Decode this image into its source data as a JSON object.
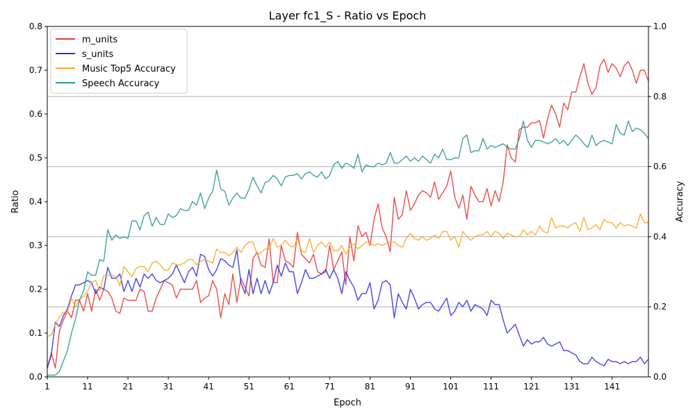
{
  "chart_data": {
    "type": "line",
    "title": "Layer fc1_S - Ratio vs Epoch",
    "xlabel": "Epoch",
    "ylabel": "Ratio",
    "y2label": "Accuracy",
    "xlim": [
      1,
      150
    ],
    "ylim": [
      0,
      0.8
    ],
    "y2lim": [
      0,
      1.0
    ],
    "xticks": [
      1,
      11,
      21,
      31,
      41,
      51,
      61,
      71,
      81,
      91,
      101,
      111,
      121,
      131,
      141
    ],
    "yticks": [
      "0.0",
      "0.1",
      "0.2",
      "0.3",
      "0.4",
      "0.5",
      "0.6",
      "0.7",
      "0.8"
    ],
    "y2ticks": [
      "0.0",
      "0.2",
      "0.4",
      "0.6",
      "0.8",
      "1.0"
    ],
    "grid": "horizontal, right axis",
    "legend_position": "top-left",
    "colors": {
      "m_units": "#e53935",
      "s_units": "#3030e0",
      "music": "#f9a825",
      "speech": "#2a9890",
      "grid": "#b0b0b0"
    },
    "series": [
      {
        "name": "m_units",
        "axis": "left",
        "key": "m_units",
        "values": [
          0.02,
          0.055,
          0.02,
          0.105,
          0.13,
          0.15,
          0.135,
          0.175,
          0.175,
          0.15,
          0.19,
          0.15,
          0.2,
          0.175,
          0.2,
          0.195,
          0.18,
          0.15,
          0.145,
          0.18,
          0.175,
          0.175,
          0.175,
          0.2,
          0.195,
          0.15,
          0.15,
          0.18,
          0.2,
          0.22,
          0.215,
          0.21,
          0.18,
          0.2,
          0.2,
          0.2,
          0.2,
          0.22,
          0.17,
          0.18,
          0.185,
          0.22,
          0.2,
          0.135,
          0.19,
          0.165,
          0.235,
          0.17,
          0.225,
          0.205,
          0.185,
          0.27,
          0.285,
          0.255,
          0.25,
          0.315,
          0.215,
          0.215,
          0.3,
          0.265,
          0.26,
          0.25,
          0.33,
          0.28,
          0.27,
          0.26,
          0.28,
          0.24,
          0.235,
          0.24,
          0.3,
          0.245,
          0.265,
          0.285,
          0.21,
          0.32,
          0.265,
          0.345,
          0.32,
          0.33,
          0.3,
          0.36,
          0.395,
          0.34,
          0.32,
          0.285,
          0.41,
          0.36,
          0.37,
          0.425,
          0.38,
          0.395,
          0.415,
          0.425,
          0.42,
          0.41,
          0.445,
          0.405,
          0.42,
          0.435,
          0.47,
          0.41,
          0.385,
          0.415,
          0.36,
          0.435,
          0.415,
          0.4,
          0.4,
          0.43,
          0.39,
          0.425,
          0.4,
          0.445,
          0.53,
          0.5,
          0.49,
          0.565,
          0.57,
          0.57,
          0.58,
          0.58,
          0.585,
          0.545,
          0.59,
          0.62,
          0.6,
          0.57,
          0.625,
          0.61,
          0.65,
          0.65,
          0.685,
          0.715,
          0.67,
          0.645,
          0.66,
          0.71,
          0.725,
          0.695,
          0.715,
          0.705,
          0.685,
          0.71,
          0.72,
          0.7,
          0.67,
          0.7,
          0.7,
          0.675
        ]
      },
      {
        "name": "s_units",
        "axis": "left",
        "key": "s_units",
        "values": [
          0.02,
          0.05,
          0.125,
          0.115,
          0.14,
          0.155,
          0.185,
          0.21,
          0.21,
          0.215,
          0.22,
          0.215,
          0.19,
          0.205,
          0.2,
          0.25,
          0.225,
          0.225,
          0.235,
          0.195,
          0.22,
          0.195,
          0.225,
          0.205,
          0.235,
          0.225,
          0.235,
          0.22,
          0.215,
          0.22,
          0.225,
          0.235,
          0.255,
          0.235,
          0.215,
          0.24,
          0.25,
          0.23,
          0.28,
          0.275,
          0.245,
          0.23,
          0.245,
          0.27,
          0.265,
          0.255,
          0.25,
          0.29,
          0.215,
          0.19,
          0.245,
          0.19,
          0.225,
          0.19,
          0.22,
          0.19,
          0.215,
          0.255,
          0.23,
          0.26,
          0.24,
          0.24,
          0.19,
          0.215,
          0.245,
          0.225,
          0.225,
          0.23,
          0.235,
          0.245,
          0.225,
          0.245,
          0.225,
          0.19,
          0.24,
          0.22,
          0.205,
          0.175,
          0.19,
          0.19,
          0.215,
          0.155,
          0.175,
          0.215,
          0.22,
          0.21,
          0.135,
          0.19,
          0.17,
          0.155,
          0.2,
          0.18,
          0.155,
          0.165,
          0.17,
          0.17,
          0.155,
          0.15,
          0.165,
          0.18,
          0.14,
          0.15,
          0.17,
          0.16,
          0.175,
          0.15,
          0.165,
          0.16,
          0.155,
          0.14,
          0.175,
          0.165,
          0.165,
          0.13,
          0.1,
          0.11,
          0.12,
          0.095,
          0.07,
          0.085,
          0.075,
          0.08,
          0.08,
          0.09,
          0.075,
          0.07,
          0.075,
          0.08,
          0.06,
          0.06,
          0.055,
          0.05,
          0.035,
          0.03,
          0.03,
          0.045,
          0.035,
          0.03,
          0.025,
          0.04,
          0.035,
          0.035,
          0.03,
          0.035,
          0.03,
          0.035,
          0.035,
          0.045,
          0.03,
          0.04
        ]
      },
      {
        "name": "Music Top5 Accuracy",
        "axis": "right",
        "key": "music",
        "values": [
          0.115,
          0.12,
          0.15,
          0.17,
          0.185,
          0.185,
          0.225,
          0.2,
          0.22,
          0.23,
          0.245,
          0.27,
          0.275,
          0.245,
          0.29,
          0.29,
          0.29,
          0.285,
          0.26,
          0.315,
          0.3,
          0.285,
          0.31,
          0.315,
          0.315,
          0.3,
          0.325,
          0.33,
          0.32,
          0.305,
          0.305,
          0.325,
          0.32,
          0.32,
          0.325,
          0.335,
          0.335,
          0.32,
          0.33,
          0.335,
          0.33,
          0.325,
          0.365,
          0.355,
          0.355,
          0.345,
          0.355,
          0.37,
          0.355,
          0.375,
          0.385,
          0.385,
          0.35,
          0.355,
          0.365,
          0.365,
          0.395,
          0.37,
          0.375,
          0.39,
          0.375,
          0.37,
          0.395,
          0.36,
          0.355,
          0.395,
          0.355,
          0.375,
          0.385,
          0.37,
          0.385,
          0.36,
          0.36,
          0.375,
          0.35,
          0.37,
          0.38,
          0.365,
          0.375,
          0.385,
          0.38,
          0.375,
          0.38,
          0.375,
          0.38,
          0.385,
          0.385,
          0.375,
          0.37,
          0.395,
          0.41,
          0.395,
          0.39,
          0.4,
          0.39,
          0.395,
          0.405,
          0.395,
          0.415,
          0.415,
          0.39,
          0.4,
          0.37,
          0.415,
          0.4,
          0.39,
          0.4,
          0.405,
          0.405,
          0.415,
          0.4,
          0.415,
          0.41,
          0.395,
          0.41,
          0.405,
          0.4,
          0.4,
          0.42,
          0.405,
          0.415,
          0.405,
          0.43,
          0.415,
          0.41,
          0.455,
          0.425,
          0.43,
          0.43,
          0.425,
          0.435,
          0.44,
          0.415,
          0.455,
          0.42,
          0.425,
          0.435,
          0.42,
          0.45,
          0.44,
          0.44,
          0.425,
          0.44,
          0.43,
          0.435,
          0.43,
          0.425,
          0.465,
          0.44,
          0.44
        ]
      },
      {
        "name": "Speech Accuracy",
        "axis": "right",
        "key": "speech",
        "values": [
          0.005,
          0.005,
          0.005,
          0.015,
          0.045,
          0.075,
          0.125,
          0.165,
          0.22,
          0.245,
          0.3,
          0.29,
          0.29,
          0.335,
          0.33,
          0.42,
          0.39,
          0.405,
          0.395,
          0.4,
          0.395,
          0.445,
          0.445,
          0.42,
          0.46,
          0.47,
          0.43,
          0.455,
          0.435,
          0.435,
          0.465,
          0.455,
          0.46,
          0.48,
          0.475,
          0.475,
          0.5,
          0.49,
          0.525,
          0.48,
          0.51,
          0.53,
          0.59,
          0.535,
          0.53,
          0.49,
          0.51,
          0.525,
          0.51,
          0.51,
          0.535,
          0.57,
          0.545,
          0.525,
          0.555,
          0.56,
          0.575,
          0.565,
          0.545,
          0.57,
          0.575,
          0.575,
          0.58,
          0.565,
          0.58,
          0.585,
          0.575,
          0.57,
          0.585,
          0.565,
          0.575,
          0.605,
          0.615,
          0.595,
          0.61,
          0.605,
          0.595,
          0.635,
          0.585,
          0.605,
          0.6,
          0.6,
          0.61,
          0.605,
          0.61,
          0.64,
          0.61,
          0.61,
          0.62,
          0.63,
          0.615,
          0.625,
          0.615,
          0.63,
          0.62,
          0.61,
          0.635,
          0.625,
          0.65,
          0.62,
          0.62,
          0.625,
          0.625,
          0.68,
          0.69,
          0.64,
          0.645,
          0.645,
          0.68,
          0.65,
          0.66,
          0.655,
          0.66,
          0.665,
          0.655,
          0.65,
          0.65,
          0.68,
          0.73,
          0.675,
          0.655,
          0.675,
          0.675,
          0.67,
          0.665,
          0.67,
          0.68,
          0.665,
          0.675,
          0.66,
          0.675,
          0.69,
          0.68,
          0.665,
          0.655,
          0.69,
          0.66,
          0.67,
          0.675,
          0.67,
          0.665,
          0.72,
          0.695,
          0.69,
          0.73,
          0.7,
          0.71,
          0.705,
          0.695,
          0.68
        ]
      }
    ]
  }
}
